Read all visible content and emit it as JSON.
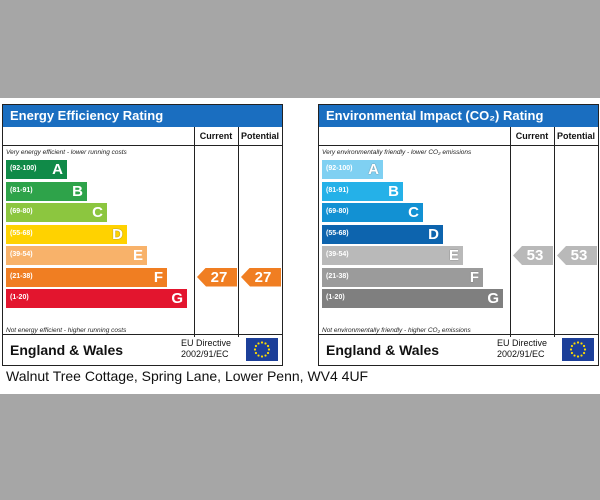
{
  "colors": {
    "background": "#a6a6a6",
    "header_blue": "#1a6ec0",
    "ee_bands": [
      "#108a48",
      "#2ea34a",
      "#8cc63f",
      "#ffd200",
      "#f8b26a",
      "#f07e22",
      "#e3152e"
    ],
    "ei_bands": [
      "#7fd0f2",
      "#25b1e8",
      "#1291d3",
      "#0d64ae",
      "#b9b9b9",
      "#9b9b9b",
      "#7f7f7f"
    ],
    "ee_arrow": "#f07e22",
    "ei_arrow": "#b9b9b9",
    "eu_flag": "#1c3f99",
    "eu_stars": "#ffdd00"
  },
  "chart_data": [
    {
      "type": "bar",
      "title": "Energy Efficiency Rating",
      "columns": [
        "Current",
        "Potential"
      ],
      "top_note": "Very energy efficient - lower running costs",
      "bottom_note": "Not energy efficient - higher running costs",
      "bands": [
        {
          "range": "(92-100)",
          "letter": "A"
        },
        {
          "range": "(81-91)",
          "letter": "B"
        },
        {
          "range": "(69-80)",
          "letter": "C"
        },
        {
          "range": "(55-68)",
          "letter": "D"
        },
        {
          "range": "(39-54)",
          "letter": "E"
        },
        {
          "range": "(21-38)",
          "letter": "F"
        },
        {
          "range": "(1-20)",
          "letter": "G"
        }
      ],
      "current": 27,
      "potential": 27,
      "region": "England & Wales",
      "directive_line1": "EU Directive",
      "directive_line2": "2002/91/EC"
    },
    {
      "type": "bar",
      "title": "Environmental Impact (CO₂) Rating",
      "columns": [
        "Current",
        "Potential"
      ],
      "top_note": "Very environmentally friendly - lower CO₂ emissions",
      "bottom_note": "Not environmentally friendly - higher CO₂ emissions",
      "bands": [
        {
          "range": "(92-100)",
          "letter": "A"
        },
        {
          "range": "(81-91)",
          "letter": "B"
        },
        {
          "range": "(69-80)",
          "letter": "C"
        },
        {
          "range": "(55-68)",
          "letter": "D"
        },
        {
          "range": "(39-54)",
          "letter": "E"
        },
        {
          "range": "(21-38)",
          "letter": "F"
        },
        {
          "range": "(1-20)",
          "letter": "G"
        }
      ],
      "current": 53,
      "potential": 53,
      "region": "England & Wales",
      "directive_line1": "EU Directive",
      "directive_line2": "2002/91/EC"
    }
  ],
  "address": "Walnut Tree Cottage, Spring Lane, Lower Penn, WV4 4UF"
}
